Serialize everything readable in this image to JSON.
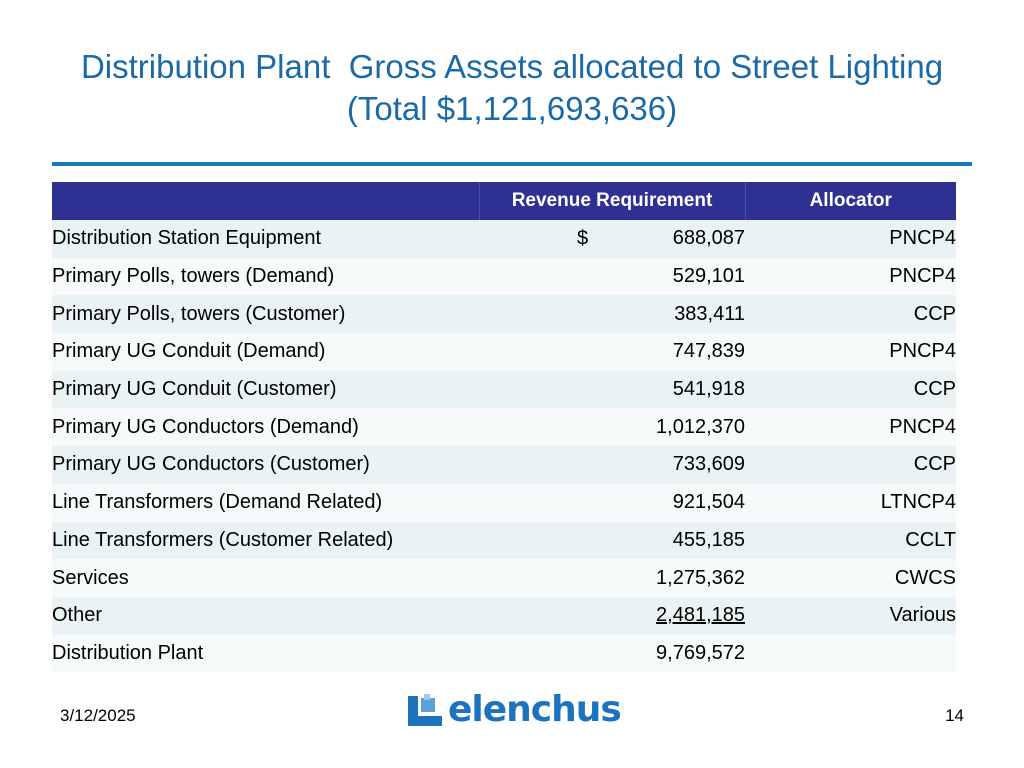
{
  "slide": {
    "title_line1": "Distribution Plant  Gross Assets allocated to Street Lighting",
    "title_line2": "(Total $1,121,693,636)",
    "date": "3/12/2025",
    "page_number": "14",
    "logo_text": "elenchus",
    "colors": {
      "title": "#1a6aa8",
      "header_bg": "#2e3192",
      "rule": "#1a7ab8",
      "row_odd": "#eaf3f4",
      "row_even": "#f6fafb",
      "logo": "#1e73be"
    }
  },
  "table": {
    "headers": [
      "",
      "Revenue Requirement",
      "Allocator"
    ],
    "currency_symbol": "$",
    "rows": [
      {
        "label": "Distribution Station Equipment",
        "revenue": "688,087",
        "allocator": "PNCP4"
      },
      {
        "label": "Primary Polls, towers (Demand)",
        "revenue": "529,101",
        "allocator": "PNCP4"
      },
      {
        "label": "Primary Polls, towers (Customer)",
        "revenue": "383,411",
        "allocator": "CCP"
      },
      {
        "label": "Primary UG Conduit (Demand)",
        "revenue": "747,839",
        "allocator": "PNCP4"
      },
      {
        "label": "Primary UG Conduit (Customer)",
        "revenue": "541,918",
        "allocator": "CCP"
      },
      {
        "label": "Primary UG Conductors (Demand)",
        "revenue": "1,012,370",
        "allocator": "PNCP4"
      },
      {
        "label": "Primary UG Conductors (Customer)",
        "revenue": "733,609",
        "allocator": "CCP"
      },
      {
        "label": "Line Transformers (Demand Related)",
        "revenue": "921,504",
        "allocator": "LTNCP4"
      },
      {
        "label": "Line Transformers (Customer Related)",
        "revenue": "455,185",
        "allocator": "CCLT"
      },
      {
        "label": "Services",
        "revenue": "1,275,362",
        "allocator": "CWCS"
      },
      {
        "label": "Other",
        "revenue": "2,481,185",
        "allocator": "Various"
      },
      {
        "label": "Distribution Plant",
        "revenue": "9,769,572",
        "allocator": ""
      }
    ]
  }
}
